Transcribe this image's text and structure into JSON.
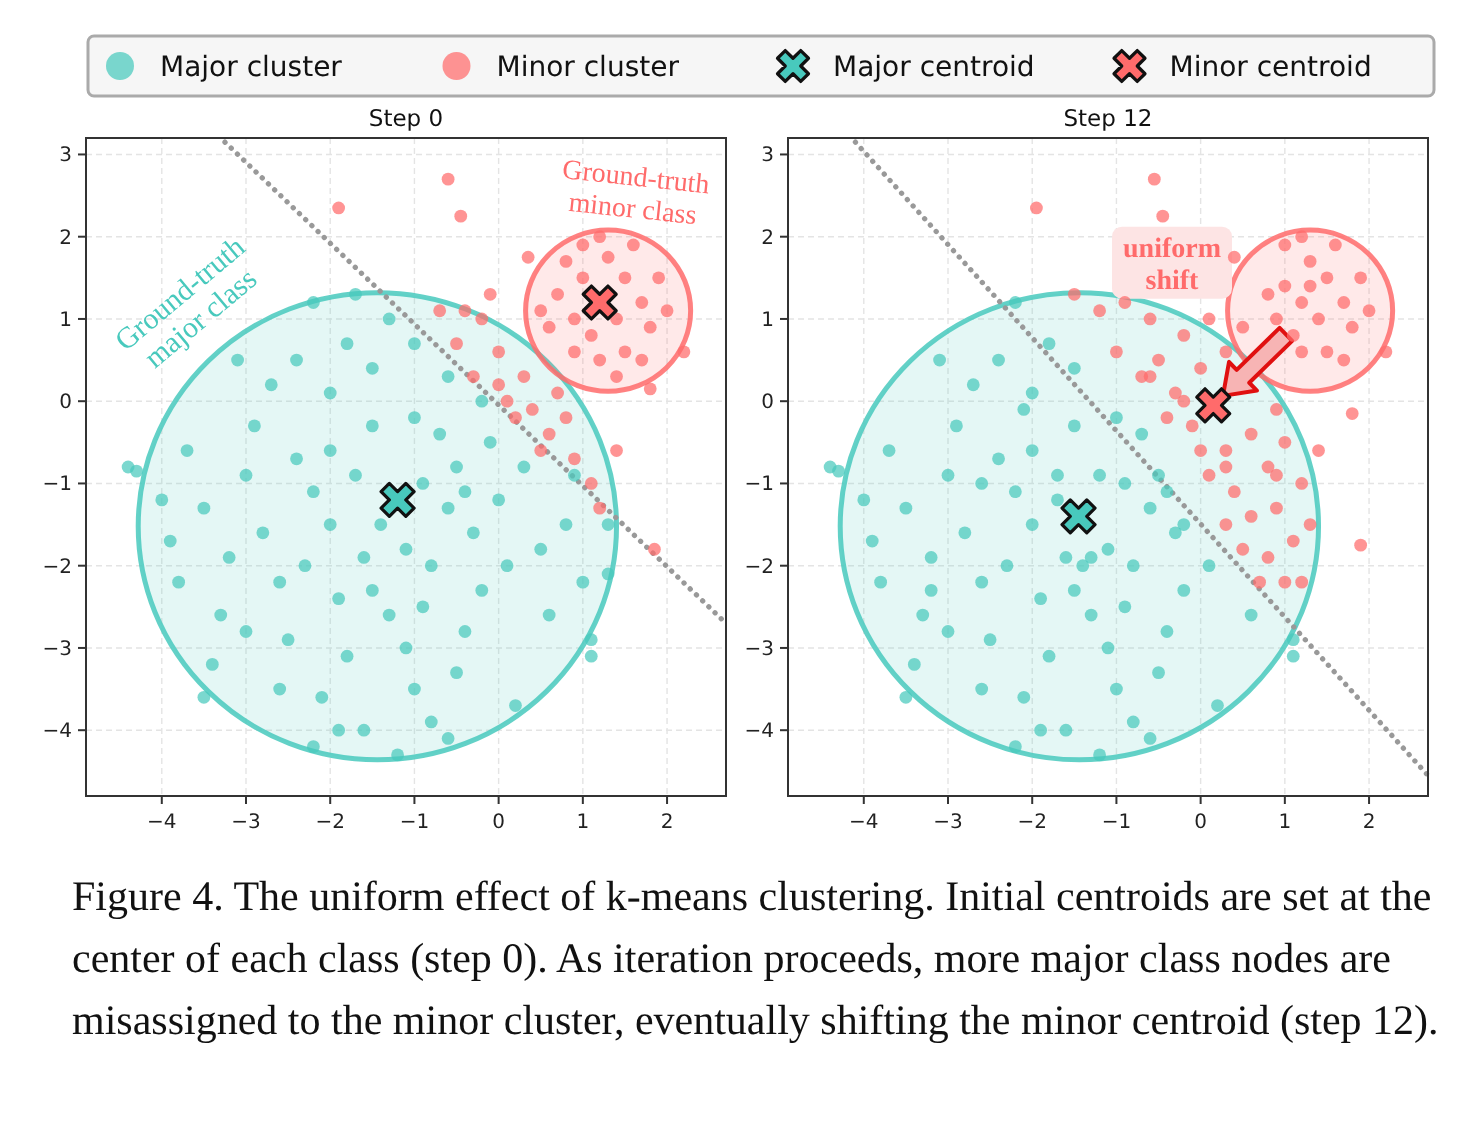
{
  "chart_data": [
    {
      "type": "scatter",
      "title": "Step 0",
      "xlim": [
        -4.9,
        2.7
      ],
      "ylim": [
        -4.8,
        3.2
      ],
      "xticks": [
        -4,
        -3,
        -2,
        -1,
        0,
        1,
        2
      ],
      "yticks": [
        -4,
        -3,
        -2,
        -1,
        0,
        1,
        2,
        3
      ],
      "grid": true,
      "legend": "top",
      "annotations": [
        "Ground-truth major class",
        "Ground-truth minor class",
        "Figure 4. The uniform effect of k-means clustering. Initial centroids are set at the center of each class (step 0). As iteration proceeds, more major class nodes are misassigned to the minor cluster, eventually shifting the minor centroid (step 12)."
      ],
      "series": [
        {
          "type": "line",
          "line_style": "dotted",
          "color": "#999999",
          "x": [
            -3.25,
            2.7
          ],
          "values": [
            3.15,
            -2.7
          ]
        },
        {
          "name": "Major cluster",
          "marker": "circle",
          "color": "#48c9bd",
          "x": [
            -0.5,
            -2.0,
            -1.5,
            -0.8,
            -1.9,
            -0.3,
            -2.4,
            -1.0,
            -1.6,
            -0.6,
            -2.2,
            -1.3,
            0.0,
            -2.8,
            -1.7,
            -0.9,
            -1.4,
            -2.6,
            -0.2,
            -1.1,
            -2.0,
            -0.7,
            -3.0,
            0.3,
            -1.8,
            -0.4,
            -2.5,
            -3.2,
            -1.5,
            0.5,
            -0.1,
            -2.9,
            -1.0,
            -2.1,
            -3.5,
            0.8,
            -0.6,
            -1.8,
            -2.4,
            -3.3,
            -0.5,
            0.6,
            -1.3,
            -2.7,
            -3.7,
            -3.9,
            -1.6,
            -0.8,
            -2.6,
            1.0,
            0.9,
            -3.4,
            -0.2,
            -1.0,
            -2.2,
            -1.7,
            -1.9,
            -1.2,
            -0.6,
            0.2,
            1.1,
            1.3,
            1.3,
            -4.4,
            -4.3,
            -3.5,
            1.1,
            -4.0,
            -3.8,
            -3.1,
            -2.3,
            -1.1,
            -0.4,
            -1.5,
            -2.0,
            -0.9,
            0.1,
            -3.0,
            -2.2
          ],
          "values": [
            -0.8,
            -1.5,
            -0.3,
            -2.0,
            -2.4,
            -1.6,
            -0.7,
            -0.2,
            -1.9,
            -1.3,
            -1.1,
            -2.6,
            -1.2,
            -1.6,
            -0.9,
            -1.0,
            -1.5,
            -2.2,
            -2.3,
            -3.0,
            0.1,
            -0.4,
            -0.9,
            -0.8,
            -3.1,
            -2.8,
            -2.9,
            -1.9,
            0.4,
            -1.8,
            -0.5,
            -0.3,
            -3.5,
            -3.6,
            -1.3,
            -1.5,
            0.3,
            0.7,
            0.5,
            -2.6,
            -3.3,
            -2.6,
            1.0,
            0.2,
            -0.6,
            -1.7,
            -4.0,
            -3.9,
            -3.5,
            -2.2,
            -0.9,
            -3.2,
            0.0,
            0.7,
            1.2,
            1.3,
            -4.0,
            -4.3,
            -4.1,
            -3.7,
            -2.9,
            -1.5,
            -2.1,
            -0.8,
            -0.85,
            -3.6,
            -3.1,
            -1.2,
            -2.2,
            0.5,
            -2.0,
            -1.8,
            -1.1,
            -2.3,
            -0.6,
            -2.5,
            -2.0,
            -2.8,
            -4.2
          ]
        },
        {
          "name": "Minor cluster",
          "marker": "circle",
          "color": "#ff6b6b",
          "x": [
            1.0,
            1.4,
            0.9,
            1.5,
            1.1,
            1.3,
            0.7,
            1.7,
            1.2,
            0.6,
            1.8,
            1.0,
            1.5,
            0.8,
            1.9,
            0.5,
            1.6,
            1.4,
            0.9,
            2.0,
            1.2,
            1.7,
            -0.7,
            -0.4,
            -0.2,
            -0.5,
            0.0,
            -0.3,
            0.1,
            0.2,
            0.3,
            0.4,
            0.6,
            0.8,
            0.5,
            0.9,
            1.1,
            1.2,
            0.7,
            0.0,
            -0.1,
            -1.9,
            -0.6,
            -0.45,
            0.35,
            1.8,
            1.4,
            1.85,
            2.2
          ],
          "values": [
            1.5,
            1.0,
            1.0,
            1.5,
            0.8,
            1.75,
            1.3,
            1.2,
            0.5,
            0.9,
            0.9,
            1.9,
            0.6,
            1.7,
            1.5,
            1.1,
            1.9,
            0.3,
            0.6,
            1.1,
            2.0,
            0.5,
            1.1,
            1.1,
            1.0,
            0.7,
            0.6,
            0.3,
            0.0,
            -0.2,
            0.3,
            -0.1,
            -0.4,
            -0.2,
            -0.6,
            -0.7,
            -1.0,
            -1.3,
            0.1,
            0.2,
            1.3,
            2.35,
            2.7,
            2.25,
            1.75,
            0.15,
            -0.6,
            -1.8,
            0.6
          ]
        },
        {
          "name": "Major centroid",
          "marker": "cross",
          "color": "#48c9bd",
          "x": [
            -1.2
          ],
          "values": [
            -1.2
          ]
        },
        {
          "name": "Minor centroid",
          "marker": "cross",
          "color": "#ff6b6b",
          "x": [
            1.2
          ],
          "values": [
            1.2
          ]
        }
      ]
    },
    {
      "type": "scatter",
      "title": "Step 12",
      "xlim": [
        -4.9,
        2.7
      ],
      "ylim": [
        -4.8,
        3.2
      ],
      "xticks": [
        -4,
        -3,
        -2,
        -1,
        0,
        1,
        2
      ],
      "yticks": [
        -4,
        -3,
        -2,
        -1,
        0,
        1,
        2,
        3
      ],
      "grid": true,
      "annotations": [
        "uniform shift"
      ],
      "series": [
        {
          "type": "line",
          "line_style": "dotted",
          "color": "#999999",
          "x": [
            -4.1,
            2.7
          ],
          "values": [
            3.15,
            -4.55
          ]
        },
        {
          "marker": "circle",
          "color": "#48c9bd",
          "x": [
            -1.2,
            -0.5,
            -2.0,
            -1.5,
            -0.8,
            -1.9,
            -0.3,
            -2.4,
            -1.0,
            -1.6,
            -0.6,
            -2.2,
            -1.3,
            -2.8,
            -1.7,
            -0.9,
            -1.4,
            -2.6,
            -0.2,
            -1.1,
            -2.0,
            -0.7,
            -3.0,
            -1.8,
            -0.4,
            -2.5,
            -3.2,
            -1.5,
            -2.9,
            -1.0,
            -2.1,
            -3.5,
            -1.8,
            -2.4,
            -3.3,
            -0.5,
            0.6,
            -2.7,
            -3.7,
            -3.9,
            -1.6,
            -0.8,
            -2.6,
            -3.4,
            -2.2,
            -1.9,
            -1.2,
            -0.6,
            0.2,
            1.1,
            1.1,
            -4.4,
            -4.3,
            -3.5,
            -4.0,
            -3.8,
            -3.1,
            -2.3,
            -1.1,
            -0.4,
            -1.5,
            -2.0,
            -0.9,
            0.1,
            -3.0,
            -2.2,
            -1.7,
            -2.1,
            -1.3,
            -0.2,
            -2.6,
            -3.2
          ],
          "values": [
            -0.9,
            -0.9,
            -1.5,
            -0.3,
            -2.0,
            -2.4,
            -1.6,
            -0.7,
            -0.2,
            -1.9,
            -1.3,
            -1.1,
            -2.6,
            -1.6,
            -0.9,
            -1.0,
            -2.0,
            -2.2,
            -2.3,
            -3.0,
            0.1,
            -0.4,
            -0.9,
            -3.1,
            -2.8,
            -2.9,
            -1.9,
            0.4,
            -0.3,
            -3.5,
            -3.6,
            -1.3,
            0.7,
            0.5,
            -2.6,
            -3.3,
            -2.6,
            0.2,
            -0.6,
            -1.7,
            -4.0,
            -3.9,
            -3.5,
            -3.2,
            1.2,
            -4.0,
            -4.3,
            -4.1,
            -3.7,
            -2.9,
            -3.1,
            -0.8,
            -0.85,
            -3.6,
            -1.2,
            -2.2,
            0.5,
            -2.0,
            -1.8,
            -1.1,
            -2.3,
            -0.6,
            -2.5,
            -2.0,
            -2.8,
            -4.2,
            -1.2,
            -0.1,
            -1.9,
            -1.5,
            -1.0,
            -2.3
          ]
        },
        {
          "marker": "circle",
          "color": "#ff6b6b",
          "x": [
            -1.5,
            -1.2,
            -0.9,
            -0.6,
            -1.0,
            -0.5,
            -0.2,
            0.1,
            -0.3,
            0.0,
            0.3,
            0.5,
            -0.1,
            0.9,
            0.3,
            0.6,
            0.1,
            0.4,
            0.8,
            1.0,
            0.6,
            0.9,
            1.2,
            0.5,
            0.8,
            1.1,
            1.2,
            -0.7,
            -0.4,
            0.0,
            1.3,
            0.3,
            0.7,
            -0.6,
            -0.2,
            1.0,
            0.9,
            0.3,
            -1.95,
            -0.55,
            -0.45,
            0.4,
            1.8,
            1.4,
            1.9,
            2.2,
            1.2,
            1.0,
            1.4,
            0.9,
            1.5,
            1.1,
            1.3,
            0.8,
            1.7,
            1.2,
            1.8,
            1.0,
            1.5,
            1.9,
            1.3,
            1.6,
            2.0,
            1.2,
            1.7
          ],
          "values": [
            1.3,
            1.1,
            1.2,
            1.0,
            0.6,
            0.5,
            0.8,
            1.0,
            0.1,
            0.4,
            0.6,
            0.9,
            -0.3,
            -0.1,
            -0.6,
            -0.4,
            -0.9,
            -1.1,
            -0.8,
            -0.5,
            -1.4,
            -1.3,
            -1.0,
            -1.8,
            -1.9,
            -1.7,
            -2.2,
            0.3,
            -0.2,
            -0.6,
            -1.5,
            -1.5,
            -2.2,
            0.3,
            0.0,
            -2.2,
            -0.9,
            -0.8,
            2.35,
            2.7,
            2.25,
            1.75,
            -0.15,
            -0.6,
            -1.75,
            0.6,
            1.2,
            1.4,
            1.0,
            1.0,
            1.5,
            0.8,
            1.7,
            1.3,
            1.2,
            0.6,
            0.9,
            1.9,
            0.6,
            1.5,
            1.4,
            1.9,
            1.1,
            2.0,
            0.5
          ]
        },
        {
          "marker": "cross",
          "color": "#48c9bd",
          "x": [
            -1.45
          ],
          "values": [
            -1.4
          ]
        },
        {
          "marker": "cross",
          "color": "#ff6b6b",
          "x": [
            0.15
          ],
          "values": [
            -0.05
          ]
        }
      ]
    }
  ]
}
